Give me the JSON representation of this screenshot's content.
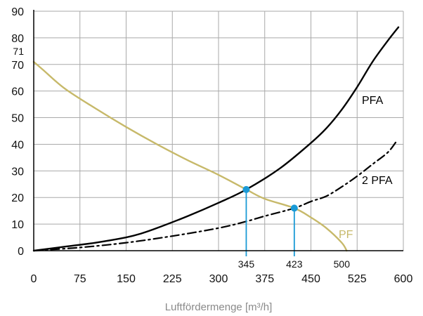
{
  "chart_data": {
    "type": "line",
    "title": "",
    "xlabel": "Luftfördermenge [m³/h]",
    "ylabel": "",
    "xlim": [
      0,
      600
    ],
    "ylim": [
      0,
      90
    ],
    "x_ticks": [
      "0",
      "75",
      "150",
      "225",
      "300",
      "375",
      "450",
      "525",
      "600"
    ],
    "y_ticks": [
      "0",
      "10",
      "20",
      "30",
      "40",
      "50",
      "60",
      "70",
      "80",
      "90"
    ],
    "grid": true,
    "y_marker": {
      "value": 71,
      "label": "71"
    },
    "series": [
      {
        "name": "PFA",
        "style": "solid",
        "color": "#000000",
        "x": [
          0,
          50,
          100,
          150,
          175,
          200,
          250,
          300,
          345,
          400,
          450,
          475,
          500,
          525,
          550,
          575,
          592
        ],
        "y": [
          0,
          1.5,
          3,
          5,
          6.5,
          8.5,
          13,
          18,
          23,
          31,
          40.5,
          46,
          53,
          61.5,
          71,
          79,
          84
        ]
      },
      {
        "name": "2 PFA",
        "style": "dashdot",
        "color": "#000000",
        "x": [
          0,
          75,
          150,
          225,
          300,
          345,
          375,
          423,
          450,
          475,
          500,
          525,
          550,
          575,
          590
        ],
        "y": [
          0,
          1.2,
          3,
          5.5,
          8.5,
          11,
          13,
          16,
          18.5,
          20.5,
          24,
          28,
          32.5,
          37,
          41.5
        ]
      },
      {
        "name": "PF",
        "style": "solid",
        "color": "#c7b96a",
        "x": [
          0,
          15,
          50,
          100,
          150,
          200,
          250,
          300,
          345,
          375,
          423,
          450,
          475,
          500,
          508
        ],
        "y": [
          71,
          68,
          61,
          53.5,
          46.5,
          40,
          34,
          28.5,
          23,
          19.5,
          16,
          12.5,
          8.5,
          3,
          0
        ]
      }
    ],
    "operating_points": [
      {
        "x": 345,
        "y": 23,
        "label": "345"
      },
      {
        "x": 423,
        "y": 16,
        "label": "423"
      }
    ],
    "x_annotations": [
      {
        "x": 500,
        "label": "500"
      }
    ],
    "colors": {
      "point": "#1a9ad6",
      "grid": "#a9a9a9",
      "axis": "#000000"
    }
  }
}
